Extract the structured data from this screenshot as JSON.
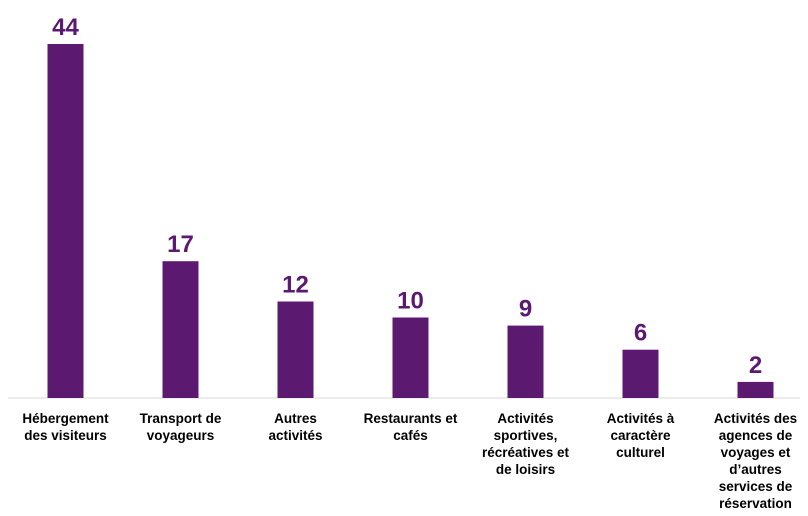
{
  "chart_data": {
    "type": "bar",
    "title": "",
    "xlabel": "",
    "ylabel": "",
    "ylim": [
      0,
      44
    ],
    "grid": false,
    "legend": "none",
    "bar_color": "#5b1a6f",
    "label_color": "#5b1a6f",
    "categories": [
      [
        "Hébergement",
        "des visiteurs"
      ],
      [
        "Transport de",
        "voyageurs"
      ],
      [
        "Autres",
        "activités"
      ],
      [
        "Restaurants et",
        "cafés"
      ],
      [
        "Activités",
        "sportives,",
        "récréatives et",
        "de loisirs"
      ],
      [
        "Activités à",
        "caractère",
        "culturel"
      ],
      [
        "Activités des",
        "agences de",
        "voyages et",
        "d’autres",
        "services de",
        "réservation"
      ]
    ],
    "values": [
      44,
      17,
      12,
      10,
      9,
      6,
      2
    ]
  }
}
